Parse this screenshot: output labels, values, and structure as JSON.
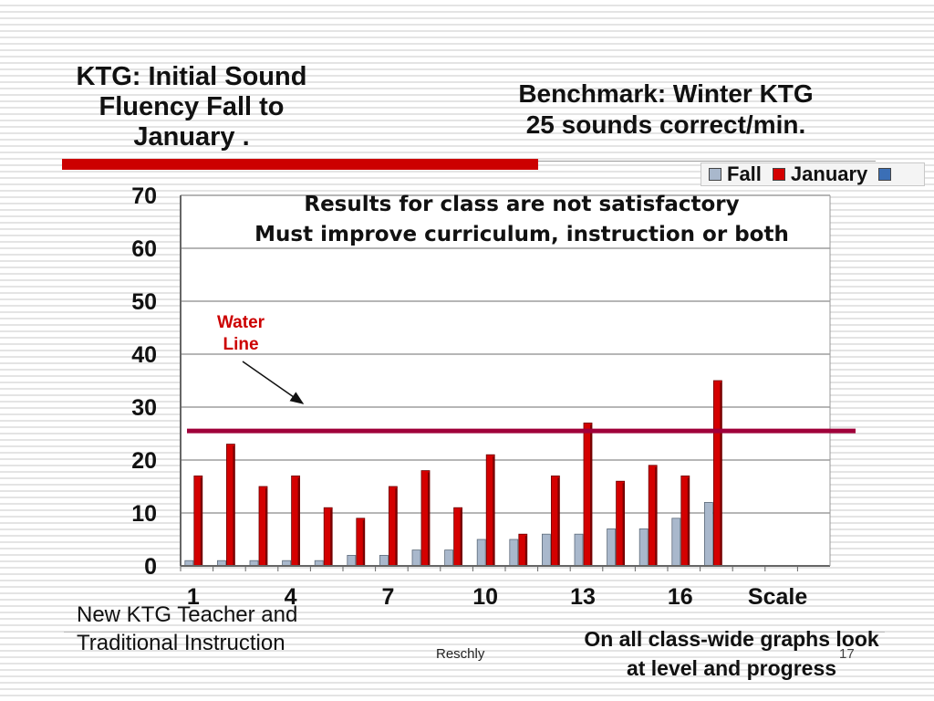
{
  "slide": {
    "title_left": [
      "KTG: Initial Sound",
      "Fluency Fall to",
      "January  ."
    ],
    "title_right": [
      "Benchmark: Winter KTG",
      "25 sounds correct/min."
    ],
    "results_text": [
      "Results for class are not satisfactory",
      "Must improve curriculum, instruction or both"
    ],
    "water_line_label": [
      "Water",
      "Line"
    ],
    "footer_left": [
      "New KTG Teacher and",
      "Traditional Instruction"
    ],
    "footer_right": [
      "On all class-wide graphs look",
      "at level and progress"
    ],
    "author": "Reschly",
    "page_number": "17",
    "colors": {
      "red_bar": "#cc0000",
      "water_line": "#a0003a",
      "water_label": "#cc0000"
    }
  },
  "chart_data": {
    "type": "bar",
    "categories": [
      "1",
      "",
      "",
      "4",
      "",
      "",
      "7",
      "",
      "",
      "10",
      "",
      "",
      "13",
      "",
      "",
      "16",
      "",
      "",
      "Scale",
      ""
    ],
    "series": [
      {
        "name": "Fall",
        "color": "#a9b8cc",
        "values": [
          1,
          1,
          1,
          1,
          1,
          2,
          2,
          3,
          3,
          5,
          5,
          6,
          6,
          7,
          7,
          9,
          12,
          null,
          null,
          null
        ]
      },
      {
        "name": "January",
        "color": "#d40000",
        "values": [
          17,
          23,
          15,
          17,
          11,
          9,
          15,
          18,
          11,
          21,
          6,
          17,
          27,
          16,
          19,
          17,
          35,
          null,
          null,
          null
        ]
      },
      {
        "name": "",
        "color": "#3b6fb6",
        "values": [
          null,
          null,
          null,
          null,
          null,
          null,
          null,
          null,
          null,
          null,
          null,
          null,
          null,
          null,
          null,
          null,
          null,
          null,
          null,
          null
        ]
      }
    ],
    "ylim": [
      0,
      70
    ],
    "yticks": [
      0,
      10,
      20,
      30,
      40,
      50,
      60,
      70
    ],
    "water_line_value": 25.5,
    "grid": true,
    "legend_position": "top-right"
  }
}
